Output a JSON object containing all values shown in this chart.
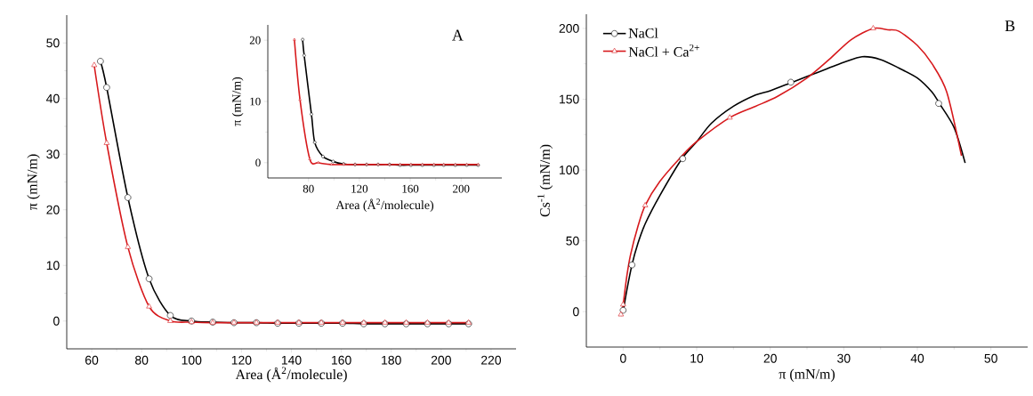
{
  "chart_data": [
    {
      "type": "line",
      "xlabel": "Area (Å$^{2}$/molecule)",
      "ylabel": "π (mN/m)",
      "annotations": [
        "A"
      ],
      "xlim": [
        50,
        230
      ],
      "ylim": [
        -5,
        55
      ],
      "xticks": [
        60,
        80,
        100,
        120,
        140,
        160,
        180,
        200,
        220
      ],
      "yticks": [
        0,
        10,
        20,
        30,
        40,
        50
      ],
      "grid": false,
      "series": [
        {
          "color": "#000000",
          "marker": "circle",
          "x": [
            63.5,
            66,
            74.5,
            83,
            91.5,
            100,
            108.5,
            117,
            126,
            134.5,
            143,
            152,
            160.5,
            169,
            177.5,
            186,
            194.5,
            203,
            211
          ],
          "values": [
            46.7,
            42,
            22.2,
            7.6,
            1,
            0,
            -0.2,
            -0.3,
            -0.3,
            -0.4,
            -0.4,
            -0.4,
            -0.4,
            -0.5,
            -0.5,
            -0.5,
            -0.5,
            -0.5,
            -0.5
          ]
        },
        {
          "color": "#d7191c",
          "marker": "triangle",
          "x": [
            61,
            66,
            74.5,
            83,
            91.5,
            100,
            108.5,
            117,
            126,
            134.5,
            143,
            152,
            160.5,
            169,
            177.5,
            186,
            194.5,
            203,
            211
          ],
          "values": [
            46,
            32,
            13.3,
            2.6,
            0,
            -0.2,
            -0.3,
            -0.3,
            -0.3,
            -0.3,
            -0.3,
            -0.3,
            -0.3,
            -0.3,
            -0.3,
            -0.3,
            -0.3,
            -0.3,
            -0.3
          ]
        }
      ]
    },
    {
      "type": "line",
      "xlabel": "Area (Å$^{2}$/molecule)",
      "ylabel": "π (mN/m)",
      "xlim": [
        48,
        232
      ],
      "ylim": [
        -2.5,
        22.5
      ],
      "xticks": [
        80,
        120,
        160,
        200
      ],
      "yticks": [
        0,
        10,
        20
      ],
      "grid": false,
      "series": [
        {
          "color": "#000000",
          "marker": "circle",
          "x": [
            75.4,
            76.6,
            82.3,
            84.9,
            91.4,
            99.4,
            107.6,
            116.6,
            125.7,
            134.7,
            143.7,
            152,
            160.5,
            169.5,
            178.6,
            186.3,
            195.4,
            204.4,
            213.4
          ],
          "values": [
            20.1,
            17.5,
            7.9,
            3.3,
            1,
            0.2,
            -0.2,
            -0.3,
            -0.3,
            -0.3,
            -0.3,
            -0.4,
            -0.4,
            -0.4,
            -0.4,
            -0.4,
            -0.4,
            -0.4,
            -0.4
          ]
        },
        {
          "color": "#d7191c",
          "marker": "triangle",
          "x": [
            68.9,
            73.3,
            81,
            87.7,
            98,
            107.6,
            116.6,
            125.7,
            134.7,
            143.7,
            152,
            160.5,
            169.5,
            178.6,
            186.3,
            195.4,
            204.4,
            213.4
          ],
          "values": [
            20.1,
            10.3,
            0.6,
            0,
            -0.3,
            -0.3,
            -0.3,
            -0.3,
            -0.3,
            -0.3,
            -0.3,
            -0.3,
            -0.3,
            -0.3,
            -0.3,
            -0.3,
            -0.3,
            -0.3
          ]
        }
      ]
    },
    {
      "type": "line",
      "xlabel": "π (mN/m)",
      "ylabel": "Cs$^{-1}$ (mN/m)",
      "annotations": [
        "B"
      ],
      "xlim": [
        -5,
        55
      ],
      "ylim": [
        -25,
        210
      ],
      "xticks": [
        0,
        10,
        20,
        30,
        40,
        50
      ],
      "yticks": [
        0,
        50,
        100,
        150,
        200
      ],
      "grid": false,
      "legend": "top left",
      "series": [
        {
          "name": "NaCl",
          "color": "#000000",
          "marker": "none",
          "x": [
            0,
            0.5,
            1.2,
            2,
            3,
            5,
            8,
            10,
            12,
            15,
            18,
            20,
            23,
            26,
            30,
            32.5,
            35,
            37.5,
            40,
            42,
            43,
            45,
            46.5
          ],
          "values": [
            0,
            15,
            33,
            48,
            62,
            82,
            108,
            120,
            133,
            145,
            153,
            156,
            162,
            168,
            176,
            180,
            178,
            172,
            165,
            155,
            147,
            130,
            105
          ]
        },
        {
          "name": "NaCl + Ca$^{2+}$",
          "color": "#d7191c",
          "marker": "none",
          "x": [
            -0.3,
            0,
            0.5,
            1,
            2,
            3,
            5,
            8,
            10,
            14.5,
            18,
            21,
            25,
            28,
            31,
            34,
            36,
            37.5,
            40,
            42,
            44,
            46
          ],
          "values": [
            -3,
            5,
            25,
            40,
            60,
            75,
            92,
            110,
            120,
            137,
            145,
            152,
            165,
            178,
            192,
            200,
            199,
            198,
            188,
            175,
            155,
            110
          ]
        },
        {
          "type": "scatter",
          "color": "#000000",
          "marker": "circle",
          "x": [
            0,
            1.2,
            8.1,
            22.8,
            42.9
          ],
          "values": [
            1,
            33,
            108,
            162,
            147
          ]
        },
        {
          "type": "scatter",
          "color": "#d7191c",
          "marker": "triangle",
          "x": [
            -0.3,
            0,
            3,
            14.5,
            34
          ],
          "values": [
            -2,
            5,
            75,
            137,
            200
          ]
        }
      ]
    }
  ]
}
